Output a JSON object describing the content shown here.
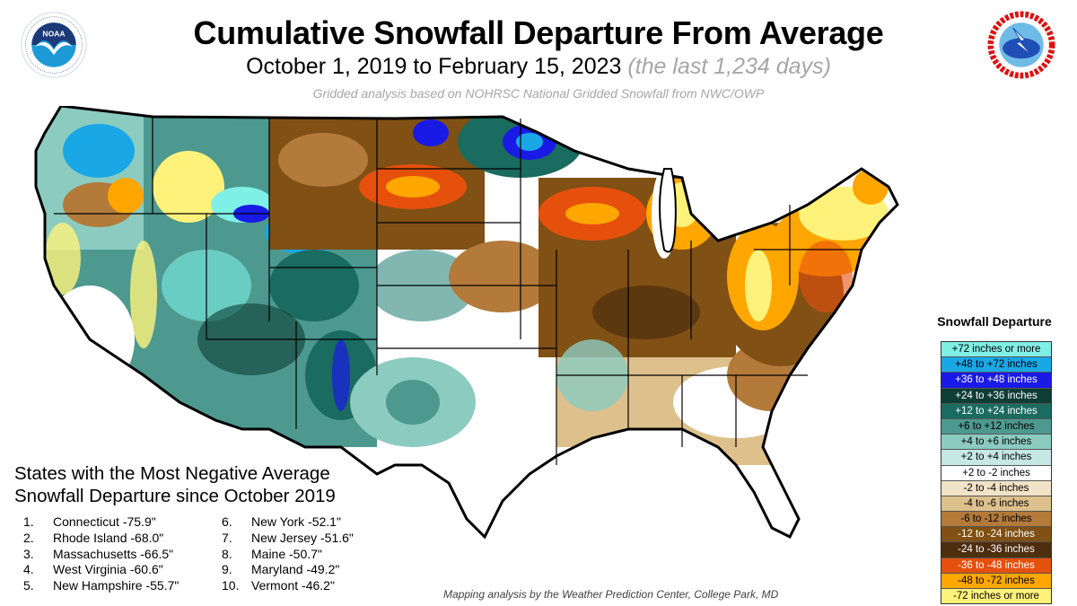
{
  "header": {
    "title": "Cumulative Snowfall Departure From Average",
    "subtitle_dates": "October 1, 2019 to February 15, 2023",
    "subtitle_days": "(the last 1,234 days)",
    "source_note": "Gridded analysis based on NOHRSC National Gridded Snowfall from NWC/OWP"
  },
  "logos": {
    "left": {
      "name": "noaa-logo",
      "text": "NOAA"
    },
    "right": {
      "name": "nws-logo",
      "text": "NATIONAL WEATHER SERVICE"
    }
  },
  "legend": {
    "title": "Snowfall  Departure",
    "items": [
      {
        "label": "+72 inches or more",
        "color": "#7ff0e6",
        "text_color": "#000000"
      },
      {
        "label": "+48 to +72 inches",
        "color": "#1aa7e6",
        "text_color": "#000000"
      },
      {
        "label": "+36 to +48 inches",
        "color": "#1a1ae6",
        "text_color": "#ffffff"
      },
      {
        "label": "+24 to +36 inches",
        "color": "#0d3d33",
        "text_color": "#ffffff"
      },
      {
        "label": "+12 to +24 inches",
        "color": "#1a6b60",
        "text_color": "#ffffff"
      },
      {
        "label": "+6 to +12 inches",
        "color": "#4d9990",
        "text_color": "#000000"
      },
      {
        "label": "+4 to +6 inches",
        "color": "#8ccbc0",
        "text_color": "#000000"
      },
      {
        "label": "+2 to +4 inches",
        "color": "#c6e8e2",
        "text_color": "#000000"
      },
      {
        "label": "+2 to -2 inches",
        "color": "#ffffff",
        "text_color": "#000000"
      },
      {
        "label": "-2 to -4 inches",
        "color": "#f2e3c6",
        "text_color": "#000000"
      },
      {
        "label": "-4 to -6 inches",
        "color": "#ddc08c",
        "text_color": "#000000"
      },
      {
        "label": "-6 to -12 inches",
        "color": "#b37a3a",
        "text_color": "#000000"
      },
      {
        "label": "-12 to -24 inches",
        "color": "#805014",
        "text_color": "#ffffff"
      },
      {
        "label": "-24 to -36 inches",
        "color": "#4d2e0d",
        "text_color": "#ffffff"
      },
      {
        "label": "-36 to -48 inches",
        "color": "#e6500d",
        "text_color": "#ffffff"
      },
      {
        "label": "-48 to -72 inches",
        "color": "#ffa600",
        "text_color": "#000000"
      },
      {
        "label": "-72 inches or more",
        "color": "#fff27a",
        "text_color": "#000000"
      }
    ]
  },
  "rankings": {
    "title_line1": "States with the Most Negative Average",
    "title_line2": "Snowfall Departure since October 2019",
    "items": [
      {
        "rank": "1.",
        "state": "Connecticut",
        "value": "-75.9\""
      },
      {
        "rank": "2.",
        "state": "Rhode Island",
        "value": "-68.0\""
      },
      {
        "rank": "3.",
        "state": "Massachusetts",
        "value": "-66.5\""
      },
      {
        "rank": "4.",
        "state": "West Virginia",
        "value": "-60.6\""
      },
      {
        "rank": "5.",
        "state": "New Hampshire",
        "value": "-55.7\""
      },
      {
        "rank": "6.",
        "state": "New York",
        "value": "-52.1\""
      },
      {
        "rank": "7.",
        "state": "New Jersey",
        "value": "-51.6\""
      },
      {
        "rank": "8.",
        "state": "Maine",
        "value": "-50.7\""
      },
      {
        "rank": "9.",
        "state": "Maryland",
        "value": "-49.2\""
      },
      {
        "rank": "10.",
        "state": "Vermont",
        "value": "-46.2\""
      }
    ]
  },
  "footer": {
    "credit": "Mapping analysis by the Weather Prediction Center, College Park, MD"
  }
}
